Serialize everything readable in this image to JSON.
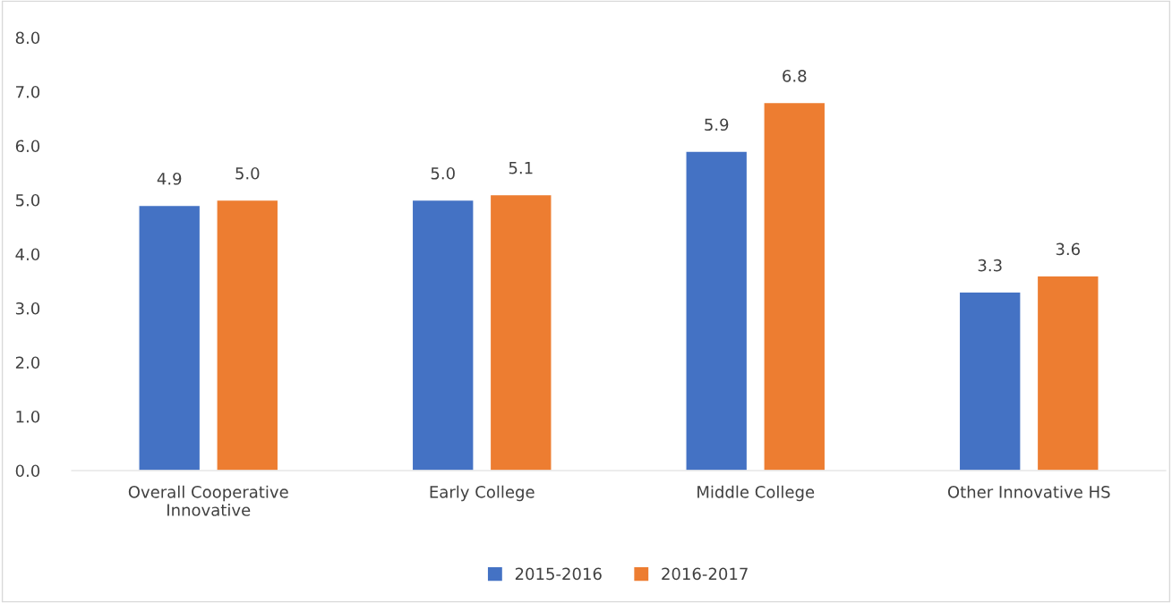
{
  "chart_data": {
    "type": "bar",
    "categories": [
      "Overall Cooperative Innovative",
      "Early College",
      "Middle College",
      "Other Innovative HS"
    ],
    "series": [
      {
        "name": "2015-2016",
        "color": "#4472c4",
        "values": [
          4.9,
          5.0,
          5.9,
          3.3
        ],
        "value_labels": [
          "4.9",
          "5.0",
          "5.9",
          "3.3"
        ]
      },
      {
        "name": "2016-2017",
        "color": "#ed7d31",
        "values": [
          5.0,
          5.1,
          6.8,
          3.6
        ],
        "value_labels": [
          "5.0",
          "5.1",
          "6.8",
          "3.6"
        ]
      }
    ],
    "ylim": [
      0,
      8
    ],
    "yticks": [
      {
        "value": 0,
        "label": "0.0"
      },
      {
        "value": 1,
        "label": "1.0"
      },
      {
        "value": 2,
        "label": "2.0"
      },
      {
        "value": 3,
        "label": "3.0"
      },
      {
        "value": 4,
        "label": "4.0"
      },
      {
        "value": 5,
        "label": "5.0"
      },
      {
        "value": 6,
        "label": "6.0"
      },
      {
        "value": 7,
        "label": "7.0"
      },
      {
        "value": 8,
        "label": "8.0"
      }
    ],
    "grid": false,
    "legend": "bottom"
  }
}
